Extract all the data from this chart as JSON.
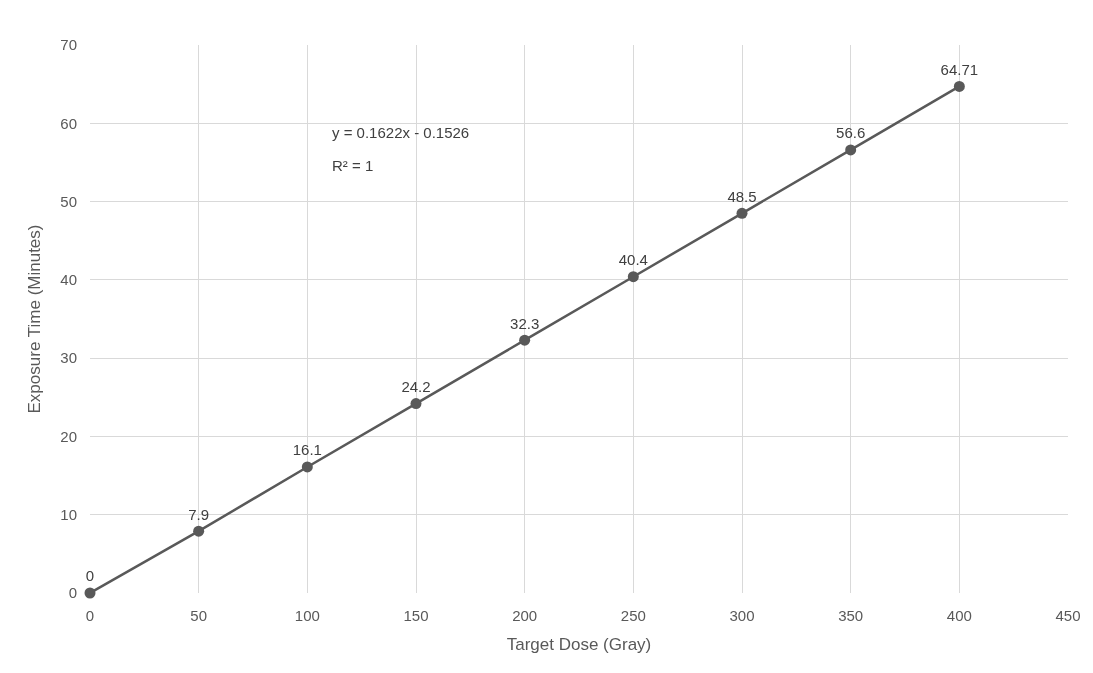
{
  "chart_data": {
    "type": "line",
    "xlabel": "Target Dose (Gray)",
    "ylabel": "Exposure Time (Minutes)",
    "x": [
      0,
      50,
      100,
      150,
      200,
      250,
      300,
      350,
      400
    ],
    "series": [
      {
        "color": "#595959",
        "values": [
          0,
          7.9,
          16.1,
          24.2,
          32.3,
          40.4,
          48.5,
          56.6,
          64.71
        ]
      }
    ],
    "xlim": [
      0,
      450
    ],
    "xticks": [
      0,
      50,
      100,
      150,
      200,
      250,
      300,
      350,
      400,
      450
    ],
    "ylim": [
      0,
      70
    ],
    "yticks": [
      0,
      10,
      20,
      30,
      40,
      50,
      60,
      70
    ],
    "annotations": [
      "y = 0.1622x - 0.1526",
      "R² = 1"
    ],
    "data_labels": true,
    "grid": true,
    "legend": false,
    "marker": "circle",
    "line_style": "solid"
  }
}
